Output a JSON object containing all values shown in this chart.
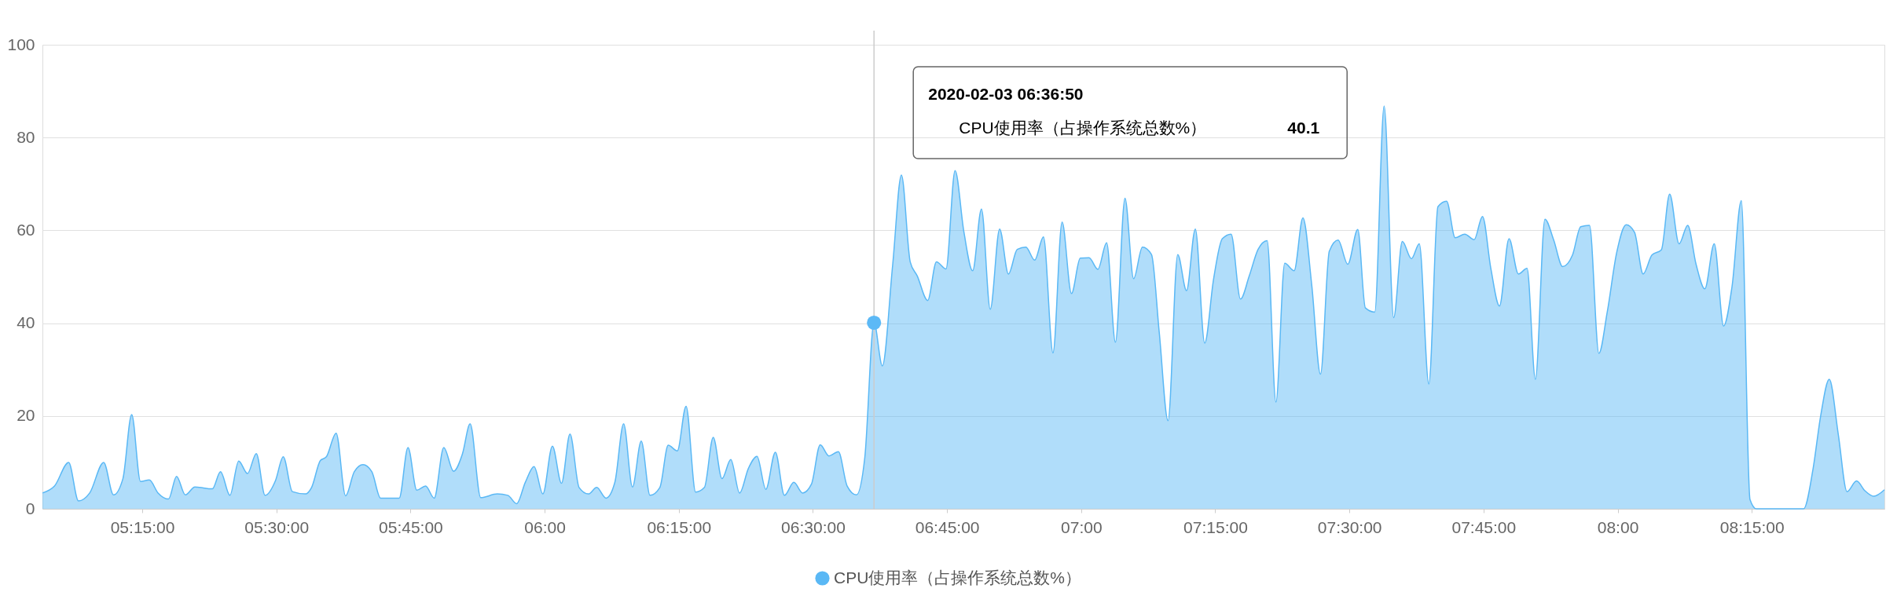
{
  "chart_data": {
    "type": "area",
    "x": [
      "2020-02-03T05:03:50",
      "2020-02-03T05:05:11",
      "2020-02-03T05:06:46",
      "2020-02-03T05:07:52",
      "2020-02-03T05:09:07",
      "2020-02-03T05:10:41",
      "2020-02-03T05:11:47",
      "2020-02-03T05:12:50",
      "2020-02-03T05:13:49",
      "2020-02-03T05:14:48",
      "2020-02-03T05:15:47",
      "2020-02-03T05:16:46",
      "2020-02-03T05:17:56",
      "2020-02-03T05:18:50",
      "2020-02-03T05:19:49",
      "2020-02-03T05:20:53",
      "2020-02-03T05:22:50",
      "2020-02-03T05:23:45",
      "2020-02-03T05:24:48",
      "2020-02-03T05:25:47",
      "2020-02-03T05:26:46",
      "2020-02-03T05:27:45",
      "2020-02-03T05:28:44",
      "2020-02-03T05:29:54",
      "2020-02-03T05:30:46",
      "2020-02-03T05:31:47",
      "2020-02-03T05:33:14",
      "2020-02-03T05:33:56",
      "2020-02-03T05:34:55",
      "2020-02-03T05:35:35",
      "2020-02-03T05:36:41",
      "2020-02-03T05:37:44",
      "2020-02-03T05:38:43",
      "2020-02-03T05:39:41",
      "2020-02-03T05:40:40",
      "2020-02-03T05:41:39",
      "2020-02-03T05:43:44",
      "2020-02-03T05:44:43",
      "2020-02-03T05:45:42",
      "2020-02-03T05:46:41",
      "2020-02-03T05:47:39",
      "2020-02-03T05:48:43",
      "2020-02-03T05:49:49",
      "2020-02-03T05:50:48",
      "2020-02-03T05:51:40",
      "2020-02-03T05:52:51",
      "2020-02-03T05:54:42",
      "2020-02-03T05:55:53",
      "2020-02-03T05:56:52",
      "2020-02-03T05:57:50",
      "2020-02-03T05:58:49",
      "2020-02-03T05:59:48",
      "2020-02-03T06:00:52",
      "2020-02-03T06:01:53",
      "2020-02-03T06:02:50",
      "2020-02-03T06:03:51",
      "2020-02-03T06:04:54",
      "2020-02-03T06:05:49",
      "2020-02-03T06:06:52",
      "2020-02-03T06:07:51",
      "2020-02-03T06:08:50",
      "2020-02-03T06:09:49",
      "2020-02-03T06:10:48",
      "2020-02-03T06:11:47",
      "2020-02-03T06:12:53",
      "2020-02-03T06:13:49",
      "2020-02-03T06:14:50",
      "2020-02-03T06:15:49",
      "2020-02-03T06:16:53",
      "2020-02-03T06:17:52",
      "2020-02-03T06:18:51",
      "2020-02-03T06:19:50",
      "2020-02-03T06:20:49",
      "2020-02-03T06:21:48",
      "2020-02-03T06:22:47",
      "2020-02-03T06:23:45",
      "2020-02-03T06:24:44",
      "2020-02-03T06:25:48",
      "2020-02-03T06:26:49",
      "2020-02-03T06:27:52",
      "2020-02-03T06:28:51",
      "2020-02-03T06:29:50",
      "2020-02-03T06:30:49",
      "2020-02-03T06:31:48",
      "2020-02-03T06:32:51",
      "2020-02-03T06:33:50",
      "2020-02-03T06:34:52",
      "2020-02-03T06:35:48",
      "2020-02-03T06:36:50",
      "2020-02-03T06:37:46",
      "2020-02-03T06:38:55",
      "2020-02-03T06:39:54",
      "2020-02-03T06:40:53",
      "2020-02-03T06:41:40",
      "2020-02-03T06:42:50",
      "2020-02-03T06:43:49",
      "2020-02-03T06:44:53",
      "2020-02-03T06:45:54",
      "2020-02-03T06:46:53",
      "2020-02-03T06:47:52",
      "2020-02-03T06:48:51",
      "2020-02-03T06:49:50",
      "2020-02-03T06:50:53",
      "2020-02-03T06:51:52",
      "2020-02-03T06:52:51",
      "2020-02-03T06:53:49",
      "2020-02-03T06:54:48",
      "2020-02-03T06:55:47",
      "2020-02-03T06:56:51",
      "2020-02-03T06:57:52",
      "2020-02-03T06:58:55",
      "2020-02-03T06:59:54",
      "2020-02-03T07:00:53",
      "2020-02-03T07:01:52",
      "2020-02-03T07:02:51",
      "2020-02-03T07:03:50",
      "2020-02-03T07:04:54",
      "2020-02-03T07:05:52",
      "2020-02-03T07:06:51",
      "2020-02-03T07:07:52",
      "2020-02-03T07:08:44",
      "2020-02-03T07:09:43",
      "2020-02-03T07:10:48",
      "2020-02-03T07:11:47",
      "2020-02-03T07:12:46",
      "2020-02-03T07:13:49",
      "2020-02-03T07:14:48",
      "2020-02-03T07:15:47",
      "2020-02-03T07:16:46",
      "2020-02-03T07:17:49",
      "2020-02-03T07:18:48",
      "2020-02-03T07:19:47",
      "2020-02-03T07:20:48",
      "2020-02-03T07:21:47",
      "2020-02-03T07:22:46",
      "2020-02-03T07:23:49",
      "2020-02-03T07:24:48",
      "2020-02-03T07:25:47",
      "2020-02-03T07:26:46",
      "2020-02-03T07:27:45",
      "2020-02-03T07:28:44",
      "2020-02-03T07:29:49",
      "2020-02-03T07:30:56",
      "2020-02-03T07:31:47",
      "2020-02-03T07:32:50",
      "2020-02-03T07:33:53",
      "2020-02-03T07:34:57",
      "2020-02-03T07:35:55",
      "2020-02-03T07:36:56",
      "2020-02-03T07:37:49",
      "2020-02-03T07:38:53",
      "2020-02-03T07:39:54",
      "2020-02-03T07:40:52",
      "2020-02-03T07:41:50",
      "2020-02-03T07:42:54",
      "2020-02-03T07:43:57",
      "2020-02-03T07:44:53",
      "2020-02-03T07:45:49",
      "2020-02-03T07:46:47",
      "2020-02-03T07:47:51",
      "2020-02-03T07:48:54",
      "2020-02-03T07:49:52",
      "2020-02-03T07:50:48",
      "2020-02-03T07:51:52",
      "2020-02-03T07:52:50",
      "2020-02-03T07:53:51",
      "2020-02-03T07:54:57",
      "2020-02-03T07:55:52",
      "2020-02-03T07:56:51",
      "2020-02-03T07:57:54",
      "2020-02-03T07:58:50",
      "2020-02-03T07:59:54",
      "2020-02-03T08:00:57",
      "2020-02-03T08:01:53",
      "2020-02-03T08:02:51",
      "2020-02-03T08:03:50",
      "2020-02-03T08:04:53",
      "2020-02-03T08:05:49",
      "2020-02-03T08:06:52",
      "2020-02-03T08:07:50",
      "2020-02-03T08:08:46",
      "2020-02-03T08:09:45",
      "2020-02-03T08:10:48",
      "2020-02-03T08:11:51",
      "2020-02-03T08:12:47",
      "2020-02-03T08:13:50",
      "2020-02-03T08:14:48",
      "2020-02-03T08:15:31",
      "2020-02-03T08:18:00",
      "2020-02-03T08:20:48",
      "2020-02-03T08:21:51",
      "2020-02-03T08:22:42",
      "2020-02-03T08:23:40",
      "2020-02-03T08:24:41",
      "2020-02-03T08:25:39",
      "2020-02-03T08:26:43",
      "2020-02-03T08:27:39",
      "2020-02-03T08:28:38",
      "2020-02-03T08:29:50"
    ],
    "series": [
      {
        "name": "CPU使用率（占操作系统总数%）",
        "color": "#5ab8f5",
        "values": [
          3.4,
          4.9,
          10.0,
          1.7,
          3.4,
          10.0,
          3.0,
          6.5,
          20.3,
          5.9,
          6.2,
          3.4,
          2.1,
          7.0,
          3.0,
          4.7,
          4.3,
          8.0,
          2.9,
          10.3,
          7.6,
          11.9,
          2.9,
          6.1,
          11.2,
          3.7,
          3.2,
          4.6,
          10.4,
          11.2,
          16.3,
          2.8,
          8.0,
          9.5,
          8.0,
          2.3,
          2.3,
          13.2,
          4.0,
          4.9,
          2.3,
          13.2,
          8.1,
          11.8,
          18.3,
          2.4,
          3.2,
          2.9,
          1.1,
          5.7,
          9.1,
          3.2,
          13.5,
          5.5,
          16.1,
          4.6,
          3.2,
          4.6,
          2.3,
          5.7,
          18.3,
          4.7,
          14.6,
          2.9,
          4.6,
          13.7,
          12.5,
          22.1,
          3.6,
          4.6,
          15.4,
          6.5,
          10.6,
          3.4,
          8.7,
          11.3,
          4.2,
          12.2,
          2.9,
          5.7,
          3.4,
          5.3,
          13.8,
          11.4,
          12.3,
          4.9,
          3.0,
          11.0,
          40.1,
          30.8,
          52.5,
          71.9,
          53.2,
          50.2,
          44.9,
          53.2,
          51.7,
          72.9,
          59.7,
          51.3,
          64.6,
          43.0,
          60.3,
          50.6,
          55.9,
          56.4,
          53.6,
          58.6,
          33.6,
          61.8,
          46.4,
          54.0,
          54.1,
          51.6,
          57.3,
          35.9,
          66.9,
          49.6,
          56.4,
          54.8,
          38.0,
          19.0,
          54.8,
          47.0,
          60.3,
          35.7,
          49.4,
          58.2,
          59.2,
          45.2,
          50.2,
          55.9,
          57.8,
          23.0,
          52.9,
          51.3,
          62.7,
          48.3,
          29.0,
          55.5,
          57.9,
          52.7,
          60.2,
          43.3,
          42.4,
          86.8,
          41.2,
          57.6,
          53.9,
          57.1,
          26.9,
          65.1,
          66.3,
          58.4,
          59.2,
          58.0,
          63.0,
          51.8,
          43.7,
          58.2,
          50.6,
          51.8,
          27.9,
          62.4,
          58.0,
          52.2,
          54.7,
          60.8,
          61.1,
          33.5,
          42.4,
          55.3,
          61.2,
          59.6,
          50.6,
          54.7,
          55.8,
          67.8,
          57.1,
          61.1,
          52.7,
          47.4,
          57.1,
          39.4,
          47.8,
          66.4,
          2.0,
          0,
          0,
          0,
          8.6,
          20.0,
          27.9,
          15.9,
          3.7,
          6.0,
          3.9,
          2.7,
          4.1
        ]
      },
      {
        "type": "scatter",
        "x": [
          "2020-02-03T06:36:50"
        ],
        "values": [
          40.1
        ],
        "color": "#5cb9f6",
        "marker": "circle"
      }
    ],
    "xlim": [
      "2020-02-03T05:03:50",
      "2020-02-03T08:29:50"
    ],
    "xticks": [
      {
        "value": "2020-02-03T05:15",
        "label": "05:15:00"
      },
      {
        "value": "2020-02-03T05:30",
        "label": "05:30:00"
      },
      {
        "value": "2020-02-03T05:45",
        "label": "05:45:00"
      },
      {
        "value": "2020-02-03T06:00",
        "label": "06:00"
      },
      {
        "value": "2020-02-03T06:15",
        "label": "06:15:00"
      },
      {
        "value": "2020-02-03T06:30",
        "label": "06:30:00"
      },
      {
        "value": "2020-02-03T06:45",
        "label": "06:45:00"
      },
      {
        "value": "2020-02-03T07:00",
        "label": "07:00"
      },
      {
        "value": "2020-02-03T07:15",
        "label": "07:15:00"
      },
      {
        "value": "2020-02-03T07:30",
        "label": "07:30:00"
      },
      {
        "value": "2020-02-03T07:45",
        "label": "07:45:00"
      },
      {
        "value": "2020-02-03T08:00",
        "label": "08:00"
      },
      {
        "value": "2020-02-03T08:15",
        "label": "08:15:00"
      }
    ],
    "ylim": [
      0,
      100
    ],
    "yticks": [
      0,
      20,
      40,
      60,
      80,
      100
    ],
    "ref_lines": [
      {
        "axis": "x",
        "value": "2020-02-03T06:36:50",
        "color": "#cccccc"
      }
    ],
    "annotations": [
      "2020-02-03 06:36:50",
      "40.1"
    ],
    "grid": "y",
    "legend": "bottom",
    "marker": "none",
    "line_style": "solid"
  }
}
